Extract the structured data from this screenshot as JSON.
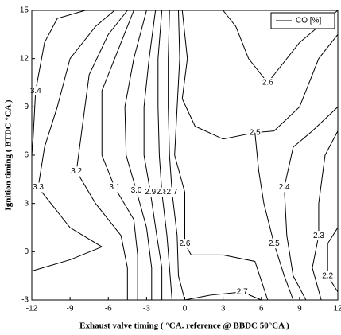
{
  "chart_data": {
    "type": "contour",
    "xlabel": "Exhaust valve timing ( °CA. reference @ BBDC 50°CA )",
    "ylabel": "Ignition timing ( BTDC °CA )",
    "xlim": [
      -12,
      12
    ],
    "ylim": [
      -3,
      15
    ],
    "xticks": [
      -12,
      -9,
      -6,
      -3,
      0,
      3,
      6,
      9,
      12
    ],
    "yticks": [
      -3,
      0,
      3,
      6,
      9,
      12,
      15
    ],
    "legend_name": "CO [%]",
    "legend": "upper right",
    "color": "#000000",
    "levels": [
      3.4,
      3.3,
      3.2,
      3.1,
      3.0,
      2.9,
      2.8,
      2.7,
      2.6,
      2.6,
      2.5,
      2.5,
      2.4,
      2.3,
      2.2,
      2.7
    ],
    "value_labels": [
      "3.4",
      "3.3",
      "3.2",
      "3.1",
      "3.0",
      "2.9",
      "2.8",
      "2.7",
      "2.6",
      "2.6",
      "2.5",
      "2.5",
      "2.4",
      "2.3",
      "2.2",
      "2.7"
    ],
    "paths": [
      {
        "x": [
          -7.8,
          -10,
          -11,
          -11.7,
          -11.9,
          -12
        ],
        "y": [
          15,
          14.5,
          13,
          10,
          7,
          6
        ]
      },
      {
        "x": [
          -5.5,
          -7,
          -9,
          -10,
          -11,
          -11.5,
          -9,
          -6.5,
          -9,
          -12
        ],
        "y": [
          15,
          14,
          12,
          9,
          6.5,
          4,
          1.5,
          0.3,
          -0.5,
          -1.2
        ]
      },
      {
        "x": [
          -4.5,
          -6,
          -7.5,
          -8,
          -8.5,
          -7,
          -5,
          -4.5,
          -4.5
        ],
        "y": [
          15,
          13.5,
          11,
          8,
          5,
          3,
          1,
          -1,
          -3
        ]
      },
      {
        "x": [
          -4,
          -5,
          -6.5,
          -6.5,
          -5.5,
          -4,
          -3.7,
          -3.7
        ],
        "y": [
          15,
          13,
          10,
          6,
          4,
          2,
          -0.2,
          -3
        ]
      },
      {
        "x": [
          -3,
          -4,
          -4.7,
          -4.6,
          -3.8,
          -3,
          -2.6,
          -2.6
        ],
        "y": [
          15,
          12,
          9,
          6,
          3.8,
          1.5,
          -1,
          -3
        ]
      },
      {
        "x": [
          -2.3,
          -2.8,
          -3.2,
          -3.2,
          -2.7,
          -2.2,
          -1.8,
          -1.8
        ],
        "y": [
          15,
          12,
          9,
          6,
          3.7,
          1,
          -1,
          -3
        ]
      },
      {
        "x": [
          -1.8,
          -2.1,
          -2.1,
          -2,
          -1.8,
          -1.4,
          -1.2,
          -1
        ],
        "y": [
          15,
          12,
          9,
          6,
          3.7,
          1,
          -1,
          -3
        ]
      },
      {
        "x": [
          -1.2,
          -1.3,
          -1.3,
          -1.2,
          -1,
          -0.6,
          -0.5,
          0
        ],
        "y": [
          15,
          12,
          9,
          6,
          3.7,
          1,
          -1.5,
          -3
        ]
      },
      {
        "x": [
          -0.5,
          -0.4,
          -0.6,
          -0.8,
          0,
          0,
          0.5,
          3,
          5.5,
          6.5
        ],
        "y": [
          15,
          12,
          9,
          6,
          3.7,
          0.5,
          -0.2,
          -0.2,
          -0.6,
          -3
        ]
      },
      {
        "x": [
          3,
          4,
          5,
          6.5,
          9,
          10.5,
          12
        ],
        "y": [
          15,
          14,
          12,
          10.5,
          13,
          14,
          15
        ]
      },
      {
        "x": [
          -0.2,
          0.2,
          -0.2,
          0.8,
          3,
          5.5,
          7,
          9,
          10.5,
          12
        ],
        "y": [
          15,
          12,
          9.5,
          7.8,
          7,
          7.4,
          7.5,
          9,
          12,
          13.5
        ]
      },
      {
        "x": [
          5.5,
          5.8,
          6.2,
          7,
          7.8,
          8.5
        ],
        "y": [
          7.4,
          5,
          3,
          0.5,
          -1.5,
          -3
        ]
      },
      {
        "x": [
          12,
          10,
          8.5,
          7.8,
          8,
          8.5,
          9.5
        ],
        "y": [
          9,
          7.5,
          6.5,
          4,
          1,
          -1.5,
          -3
        ]
      },
      {
        "x": [
          12,
          11,
          10.5,
          10.5,
          10,
          10.7
        ],
        "y": [
          7.5,
          6,
          3,
          1,
          -1,
          -3
        ]
      },
      {
        "x": [
          12,
          11.2,
          11.2,
          12
        ],
        "y": [
          1.5,
          0.5,
          -1.5,
          -2.5
        ]
      },
      {
        "x": [
          0,
          2,
          4.5,
          6
        ],
        "y": [
          -3,
          -2.7,
          -2.5,
          -3
        ]
      }
    ]
  }
}
